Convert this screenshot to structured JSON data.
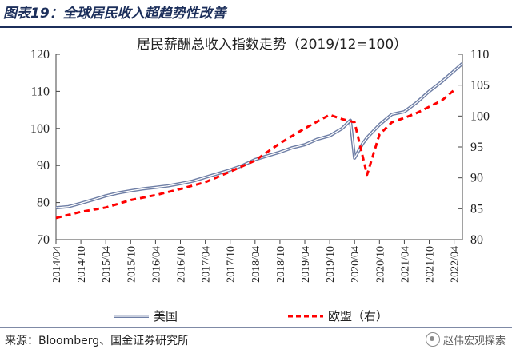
{
  "figure": {
    "title": "图表19：全球居民收入超趋势性改善",
    "source": "来源：Bloomberg、国金证券研究所",
    "watermark": "赵伟宏观探索"
  },
  "chart_data": {
    "type": "line",
    "title": "居民薪酬总收入指数走势（2019/12=100）",
    "x_tick_labels": [
      "2014/04",
      "2014/10",
      "2015/04",
      "2015/10",
      "2016/04",
      "2016/10",
      "2017/04",
      "2017/10",
      "2018/04",
      "2018/10",
      "2019/04",
      "2019/10",
      "2020/04",
      "2020/10",
      "2021/04",
      "2021/10",
      "2022/04"
    ],
    "left_axis": {
      "range": [
        70,
        120
      ],
      "ticks": [
        70,
        80,
        90,
        100,
        110,
        120
      ]
    },
    "right_axis": {
      "range": [
        80,
        110
      ],
      "ticks": [
        80,
        85,
        90,
        95,
        100,
        105,
        110
      ]
    },
    "grid": false,
    "legend_position": "bottom",
    "series": [
      {
        "name": "美国",
        "axis": "left",
        "color": "#6f7fa6",
        "style": "double-solid",
        "points": [
          [
            "2014/04",
            78.6
          ],
          [
            "2014/07",
            78.9
          ],
          [
            "2014/10",
            79.8
          ],
          [
            "2015/01",
            80.8
          ],
          [
            "2015/04",
            81.8
          ],
          [
            "2015/07",
            82.6
          ],
          [
            "2015/10",
            83.2
          ],
          [
            "2016/01",
            83.7
          ],
          [
            "2016/04",
            84.1
          ],
          [
            "2016/07",
            84.5
          ],
          [
            "2016/10",
            85.1
          ],
          [
            "2017/01",
            85.8
          ],
          [
            "2017/04",
            86.8
          ],
          [
            "2017/07",
            87.8
          ],
          [
            "2017/10",
            88.8
          ],
          [
            "2018/01",
            90.0
          ],
          [
            "2018/04",
            91.6
          ],
          [
            "2018/07",
            92.6
          ],
          [
            "2018/10",
            93.6
          ],
          [
            "2019/01",
            94.8
          ],
          [
            "2019/04",
            95.6
          ],
          [
            "2019/07",
            97.1
          ],
          [
            "2019/10",
            98.0
          ],
          [
            "2020/01",
            100.0
          ],
          [
            "2020/03",
            102.2
          ],
          [
            "2020/04",
            92.0
          ],
          [
            "2020/06",
            96.0
          ],
          [
            "2020/07",
            97.5
          ],
          [
            "2020/10",
            101.0
          ],
          [
            "2021/01",
            103.8
          ],
          [
            "2021/04",
            104.5
          ],
          [
            "2021/07",
            107.0
          ],
          [
            "2021/10",
            110.0
          ],
          [
            "2022/01",
            112.6
          ],
          [
            "2022/04",
            115.5
          ],
          [
            "2022/06",
            117.5
          ]
        ]
      },
      {
        "name": "欧盟（右）",
        "axis": "right",
        "color": "#ff0000",
        "style": "dashed",
        "points": [
          [
            "2014/04",
            83.5
          ],
          [
            "2014/10",
            84.5
          ],
          [
            "2015/04",
            85.2
          ],
          [
            "2015/10",
            86.4
          ],
          [
            "2016/04",
            87.2
          ],
          [
            "2016/10",
            88.2
          ],
          [
            "2017/04",
            89.3
          ],
          [
            "2017/10",
            91.0
          ],
          [
            "2018/04",
            92.8
          ],
          [
            "2018/10",
            95.6
          ],
          [
            "2019/04",
            98.0
          ],
          [
            "2019/10",
            100.2
          ],
          [
            "2020/01",
            99.5
          ],
          [
            "2020/04",
            99.0
          ],
          [
            "2020/07",
            90.5
          ],
          [
            "2020/10",
            97.0
          ],
          [
            "2021/01",
            99.0
          ],
          [
            "2021/04",
            99.7
          ],
          [
            "2021/07",
            100.5
          ],
          [
            "2021/10",
            101.5
          ],
          [
            "2022/01",
            102.5
          ],
          [
            "2022/04",
            104.2
          ]
        ]
      }
    ]
  }
}
